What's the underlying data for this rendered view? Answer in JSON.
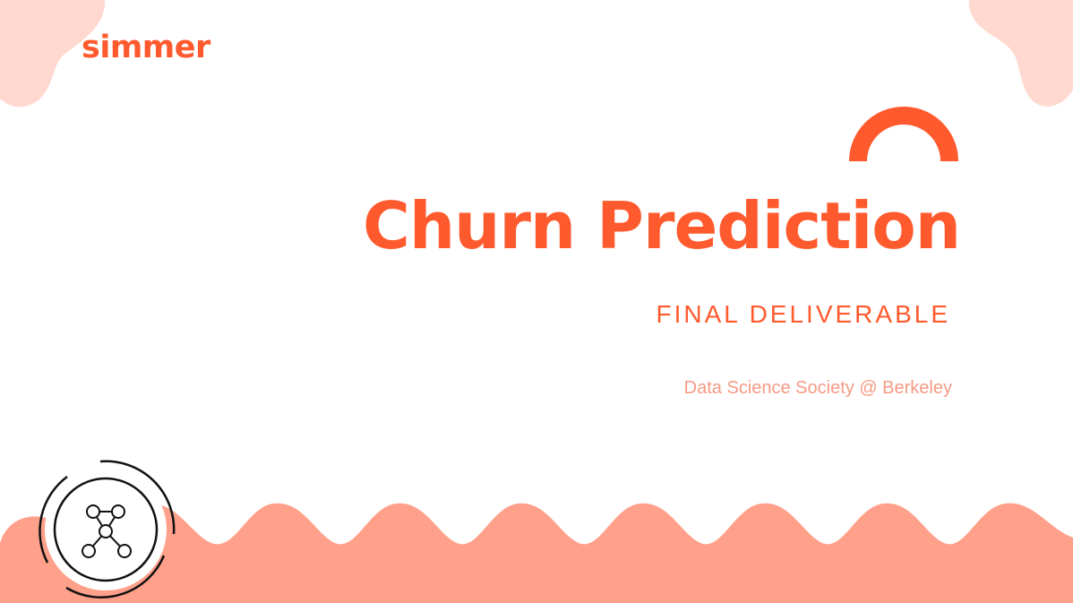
{
  "slide": {
    "logo_text": "simmer",
    "title": "Churn Prediction",
    "subtitle": "FINAL DELIVERABLE",
    "organization": "Data Science Society @ Berkeley"
  },
  "colors": {
    "accent": "#ff5a2e",
    "wave": "#ffa08a",
    "blob": "#ffd8cf",
    "org_text": "#f59a84",
    "emblem_stroke": "#111111"
  },
  "icons": {
    "arc": "semicircle-arc",
    "emblem": "network-graph-circle-logo"
  }
}
